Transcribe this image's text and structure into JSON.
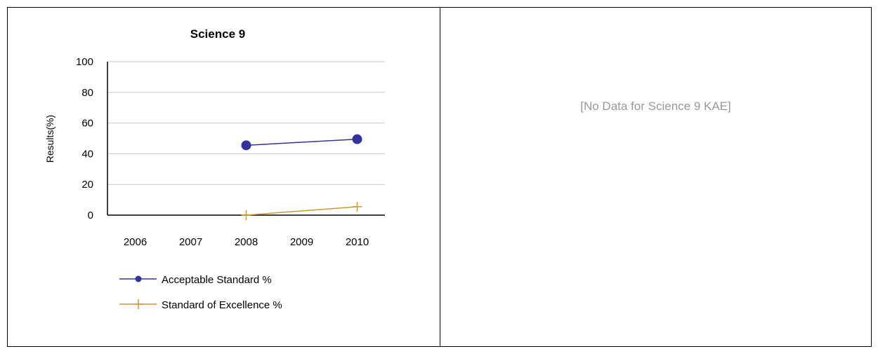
{
  "chart_data": {
    "type": "line",
    "title": "Science 9",
    "ylabel": "Results(%)",
    "xlabel": "",
    "categories": [
      "2006",
      "2007",
      "2008",
      "2009",
      "2010"
    ],
    "ylim": [
      0,
      100
    ],
    "yticks": [
      0,
      20,
      40,
      60,
      80,
      100
    ],
    "grid": true,
    "legend_position": "bottom-left",
    "series": [
      {
        "name": "Acceptable Standard %",
        "values": [
          null,
          null,
          45.5,
          null,
          49.5
        ],
        "color": "#333399",
        "marker": "circle"
      },
      {
        "name": "Standard of Excellence %",
        "values": [
          null,
          null,
          0,
          null,
          5.5
        ],
        "color": "#CC9933",
        "marker": "plus"
      }
    ]
  },
  "right_panel": {
    "message": "[No Data for Science 9 KAE]"
  }
}
